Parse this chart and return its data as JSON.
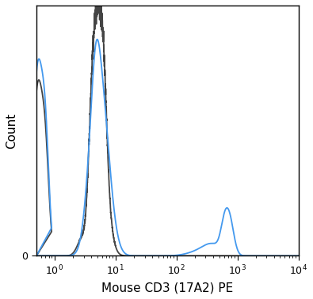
{
  "title": "",
  "xlabel": "Mouse CD3 (17A2) PE",
  "ylabel": "Count",
  "xlim_log": [
    -0.3,
    4.0
  ],
  "ylim": [
    0,
    1.0
  ],
  "background_color": "#ffffff",
  "gray_line_color": "#444444",
  "blue_line_color": "#4499ee",
  "linewidth": 1.3,
  "xlabel_fontsize": 11,
  "ylabel_fontsize": 11,
  "yticks": [
    0
  ],
  "ytick_labels": [
    "0"
  ]
}
